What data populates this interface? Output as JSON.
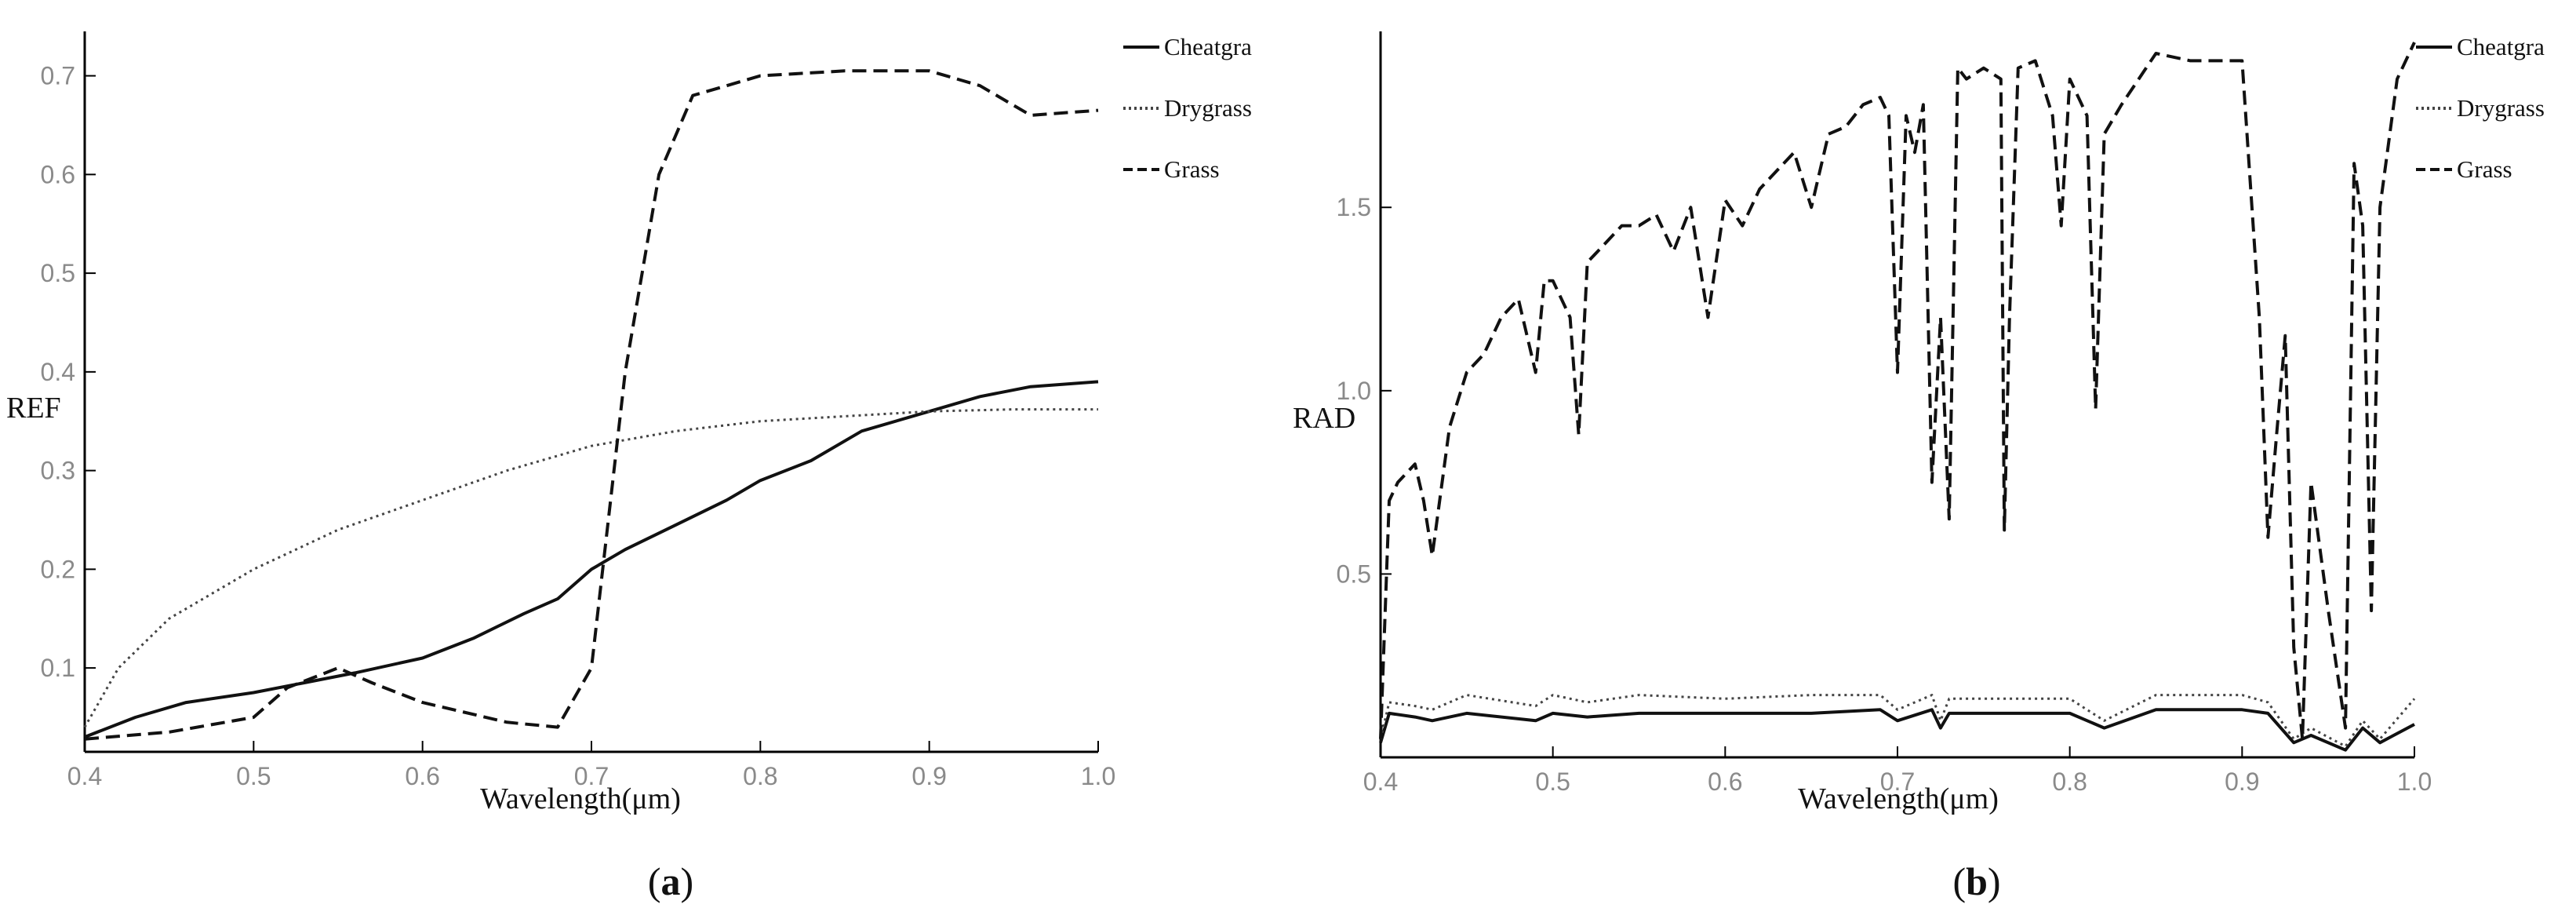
{
  "chart_data": [
    {
      "type": "line",
      "caption": "a",
      "xlabel": "Wavelength(μm)",
      "ylabel": "REF",
      "xlim": [
        0.4,
        1.0
      ],
      "ylim": [
        0.015,
        0.745
      ],
      "xticks": [
        "0.4",
        "0.5",
        "0.6",
        "0.7",
        "0.8",
        "0.9",
        "1.0"
      ],
      "yticks": [
        "0.1",
        "0.2",
        "0.3",
        "0.4",
        "0.5",
        "0.6",
        "0.7"
      ],
      "legend_position": "top-right",
      "series": [
        {
          "name": "Cheatgra",
          "style": "solid",
          "color": "#111111",
          "x": [
            0.4,
            0.43,
            0.46,
            0.5,
            0.53,
            0.56,
            0.6,
            0.63,
            0.66,
            0.68,
            0.7,
            0.72,
            0.75,
            0.78,
            0.8,
            0.83,
            0.86,
            0.9,
            0.93,
            0.96,
            1.0
          ],
          "y": [
            0.03,
            0.05,
            0.065,
            0.075,
            0.085,
            0.095,
            0.11,
            0.13,
            0.155,
            0.17,
            0.2,
            0.22,
            0.245,
            0.27,
            0.29,
            0.31,
            0.34,
            0.36,
            0.375,
            0.385,
            0.39
          ]
        },
        {
          "name": "Drygrass",
          "style": "dotted",
          "color": "#444444",
          "x": [
            0.4,
            0.42,
            0.45,
            0.5,
            0.55,
            0.6,
            0.65,
            0.7,
            0.75,
            0.8,
            0.85,
            0.9,
            0.95,
            1.0
          ],
          "y": [
            0.04,
            0.1,
            0.15,
            0.2,
            0.24,
            0.27,
            0.3,
            0.325,
            0.34,
            0.35,
            0.355,
            0.36,
            0.362,
            0.362
          ]
        },
        {
          "name": "Grass",
          "style": "dashed",
          "color": "#111111",
          "x": [
            0.4,
            0.45,
            0.5,
            0.52,
            0.55,
            0.57,
            0.6,
            0.65,
            0.68,
            0.7,
            0.72,
            0.74,
            0.76,
            0.78,
            0.8,
            0.85,
            0.9,
            0.93,
            0.96,
            1.0
          ],
          "y": [
            0.028,
            0.035,
            0.05,
            0.08,
            0.1,
            0.085,
            0.065,
            0.045,
            0.04,
            0.1,
            0.4,
            0.6,
            0.68,
            0.69,
            0.7,
            0.705,
            0.705,
            0.69,
            0.66,
            0.665
          ]
        }
      ]
    },
    {
      "type": "line",
      "caption": "b",
      "xlabel": "Wavelength(μm)",
      "ylabel": "RAD",
      "xlim": [
        0.4,
        1.0
      ],
      "ylim": [
        0.0,
        1.98
      ],
      "xticks": [
        "0.4",
        "0.5",
        "0.6",
        "0.7",
        "0.8",
        "0.9",
        "1.0"
      ],
      "yticks": [
        "0.5",
        "1.0",
        "1.5"
      ],
      "legend_position": "top-right",
      "series": [
        {
          "name": "Cheatgra",
          "style": "solid",
          "color": "#111111",
          "x": [
            0.4,
            0.405,
            0.42,
            0.43,
            0.45,
            0.49,
            0.5,
            0.52,
            0.55,
            0.6,
            0.65,
            0.69,
            0.7,
            0.72,
            0.725,
            0.73,
            0.76,
            0.78,
            0.8,
            0.82,
            0.85,
            0.9,
            0.915,
            0.93,
            0.94,
            0.96,
            0.97,
            0.98,
            1.0
          ],
          "y": [
            0.04,
            0.12,
            0.11,
            0.1,
            0.12,
            0.1,
            0.12,
            0.11,
            0.12,
            0.12,
            0.12,
            0.13,
            0.1,
            0.13,
            0.08,
            0.12,
            0.12,
            0.12,
            0.12,
            0.08,
            0.13,
            0.13,
            0.12,
            0.04,
            0.06,
            0.02,
            0.08,
            0.04,
            0.09
          ]
        },
        {
          "name": "Drygrass",
          "style": "dotted",
          "color": "#444444",
          "x": [
            0.4,
            0.405,
            0.42,
            0.43,
            0.45,
            0.49,
            0.5,
            0.52,
            0.55,
            0.6,
            0.65,
            0.69,
            0.7,
            0.72,
            0.725,
            0.73,
            0.76,
            0.78,
            0.8,
            0.82,
            0.85,
            0.9,
            0.915,
            0.93,
            0.94,
            0.96,
            0.97,
            0.98,
            1.0
          ],
          "y": [
            0.05,
            0.15,
            0.14,
            0.13,
            0.17,
            0.14,
            0.17,
            0.15,
            0.17,
            0.16,
            0.17,
            0.17,
            0.13,
            0.17,
            0.1,
            0.16,
            0.16,
            0.16,
            0.16,
            0.1,
            0.17,
            0.17,
            0.15,
            0.05,
            0.08,
            0.03,
            0.1,
            0.05,
            0.16
          ]
        },
        {
          "name": "Grass",
          "style": "dashed",
          "color": "#111111",
          "x": [
            0.4,
            0.405,
            0.41,
            0.42,
            0.425,
            0.43,
            0.44,
            0.45,
            0.46,
            0.47,
            0.48,
            0.49,
            0.495,
            0.5,
            0.51,
            0.515,
            0.52,
            0.53,
            0.54,
            0.55,
            0.56,
            0.57,
            0.58,
            0.59,
            0.6,
            0.61,
            0.62,
            0.63,
            0.64,
            0.65,
            0.66,
            0.67,
            0.68,
            0.69,
            0.695,
            0.7,
            0.705,
            0.71,
            0.715,
            0.72,
            0.725,
            0.73,
            0.735,
            0.74,
            0.75,
            0.76,
            0.762,
            0.765,
            0.77,
            0.78,
            0.79,
            0.795,
            0.8,
            0.81,
            0.815,
            0.82,
            0.83,
            0.85,
            0.87,
            0.9,
            0.91,
            0.915,
            0.92,
            0.925,
            0.93,
            0.935,
            0.94,
            0.95,
            0.96,
            0.965,
            0.97,
            0.975,
            0.98,
            0.99,
            1.0
          ],
          "y": [
            0.05,
            0.7,
            0.75,
            0.8,
            0.7,
            0.55,
            0.9,
            1.05,
            1.1,
            1.2,
            1.25,
            1.05,
            1.3,
            1.3,
            1.2,
            0.88,
            1.35,
            1.4,
            1.45,
            1.45,
            1.48,
            1.38,
            1.5,
            1.2,
            1.52,
            1.45,
            1.55,
            1.6,
            1.65,
            1.5,
            1.7,
            1.72,
            1.78,
            1.8,
            1.75,
            1.05,
            1.75,
            1.65,
            1.78,
            0.75,
            1.2,
            0.65,
            1.88,
            1.85,
            1.88,
            1.85,
            0.62,
            1.2,
            1.88,
            1.9,
            1.75,
            1.45,
            1.85,
            1.75,
            0.95,
            1.7,
            1.78,
            1.92,
            1.9,
            1.9,
            1.2,
            0.6,
            0.88,
            1.15,
            0.3,
            0.05,
            0.75,
            0.4,
            0.08,
            1.62,
            1.45,
            0.4,
            1.5,
            1.85,
            1.95
          ]
        }
      ]
    }
  ]
}
